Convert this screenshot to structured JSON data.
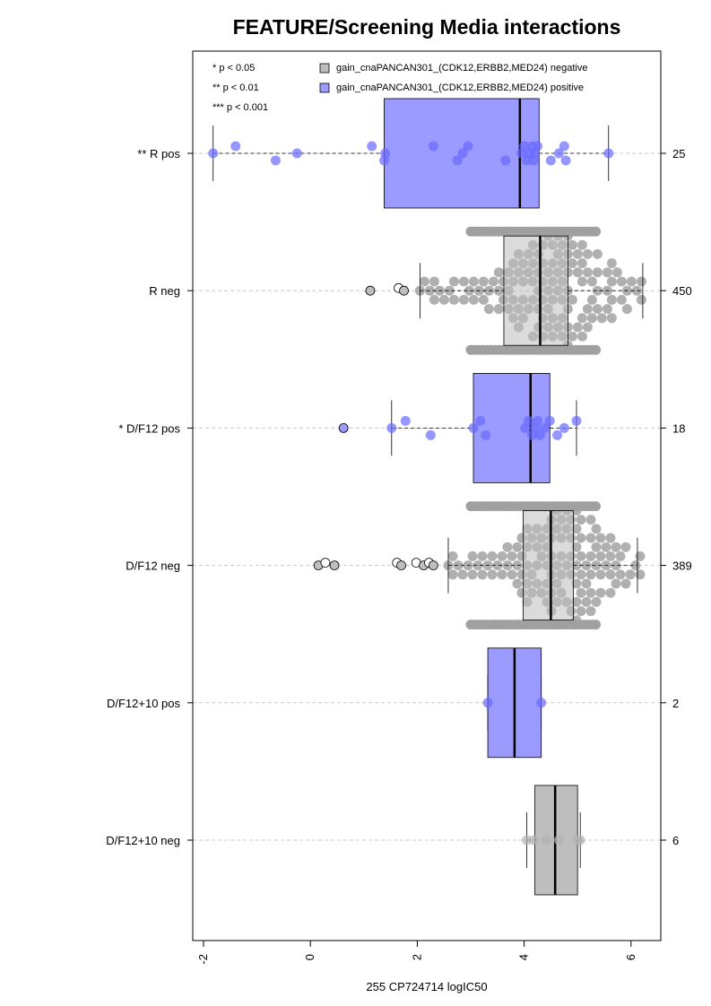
{
  "chart_data": {
    "type": "box",
    "orientation": "horizontal",
    "title": "FEATURE/Screening Media interactions",
    "xlabel": "255 CP724714 logIC50",
    "xlim": [
      -2.2,
      6.5
    ],
    "xticks": [
      -2,
      0,
      2,
      4,
      6
    ],
    "xtick_labels": [
      "-2",
      "0",
      "2",
      "4",
      "6"
    ],
    "grid": "dashed horizontal at each group",
    "legend": {
      "placement": "top",
      "significance": [
        "* p < 0.05",
        "** p < 0.01",
        "*** p < 0.001"
      ],
      "entries": [
        {
          "label": "gain_cnaPANCAN301_(CDK12,ERBB2,MED24) negative",
          "color": "#bebebe"
        },
        {
          "label": "gain_cnaPANCAN301_(CDK12,ERBB2,MED24) positive",
          "color": "#9a9aff"
        }
      ]
    },
    "groups": [
      {
        "label": "** R pos",
        "n": "25",
        "color": "#9a9aff",
        "point_color": "#6a6aff",
        "q1": 1.38,
        "median": 3.92,
        "q3": 4.28,
        "whisker_low": -1.82,
        "whisker_high": 5.58,
        "points": [
          -1.82,
          -1.4,
          -0.65,
          -0.25,
          1.15,
          1.38,
          1.4,
          2.3,
          2.75,
          2.85,
          2.95,
          3.65,
          3.95,
          4.0,
          4.05,
          4.1,
          4.15,
          4.18,
          4.2,
          4.25,
          4.5,
          4.65,
          4.75,
          4.78,
          5.58
        ],
        "outliers": []
      },
      {
        "label": "R neg",
        "n": "450",
        "color": "#bebebe",
        "point_color": "#b0b0b0",
        "q1": 3.62,
        "median": 4.3,
        "q3": 4.82,
        "whisker_low": 2.05,
        "whisker_high": 6.22,
        "count": 450,
        "range": [
          2.05,
          6.22
        ],
        "points": [],
        "outliers": [
          1.12,
          1.65,
          1.75
        ]
      },
      {
        "label": "* D/F12 pos",
        "n": "18",
        "color": "#9a9aff",
        "point_color": "#6a6aff",
        "q1": 3.05,
        "median": 4.12,
        "q3": 4.48,
        "whisker_low": 1.52,
        "whisker_high": 4.98,
        "points": [
          1.52,
          1.78,
          2.25,
          3.05,
          3.18,
          3.28,
          4.02,
          4.08,
          4.15,
          4.2,
          4.25,
          4.3,
          4.38,
          4.48,
          4.62,
          4.75,
          4.98
        ],
        "outliers": [
          0.62
        ]
      },
      {
        "label": "D/F12 neg",
        "n": "389",
        "color": "#bebebe",
        "point_color": "#b0b0b0",
        "q1": 3.98,
        "median": 4.5,
        "q3": 4.92,
        "whisker_low": 2.58,
        "whisker_high": 6.12,
        "count": 389,
        "range": [
          2.58,
          6.12
        ],
        "points": [],
        "outliers": [
          0.15,
          0.28,
          0.45,
          1.62,
          1.7,
          1.98,
          2.12,
          2.22,
          2.3
        ]
      },
      {
        "label": "D/F12+10 pos",
        "n": "2",
        "color": "#9a9aff",
        "point_color": "#6a6aff",
        "q1": 3.32,
        "median": 3.82,
        "q3": 4.32,
        "whisker_low": 3.32,
        "whisker_high": 4.32,
        "points": [
          3.32,
          4.32
        ],
        "outliers": []
      },
      {
        "label": "D/F12+10 neg",
        "n": "6",
        "color": "#bebebe",
        "point_color": "#b0b0b0",
        "q1": 4.2,
        "median": 4.58,
        "q3": 5.0,
        "whisker_low": 4.05,
        "whisker_high": 5.05,
        "points": [
          4.05,
          4.18,
          4.42,
          4.65,
          5.0,
          5.05
        ],
        "outliers": []
      }
    ]
  }
}
